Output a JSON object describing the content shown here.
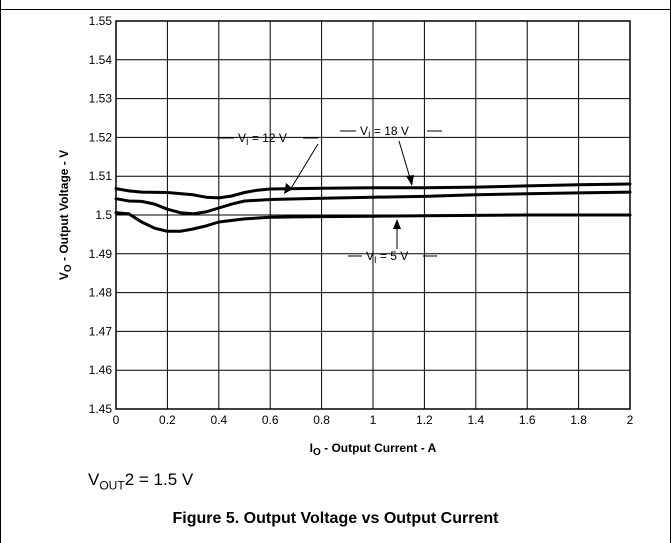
{
  "chart_data": {
    "type": "line",
    "title": "Figure 5. Output Voltage vs Output Current",
    "xlabel": {
      "main": "I",
      "sub": "O",
      "rest": " - Output Current - A"
    },
    "ylabel": {
      "main": "V",
      "sub": "O",
      "rest": " - Output Voltage - V"
    },
    "xlim": [
      0,
      2
    ],
    "ylim": [
      1.45,
      1.55
    ],
    "xticks": [
      "0",
      "0.2",
      "0.4",
      "0.6",
      "0.8",
      "1",
      "1.2",
      "1.4",
      "1.6",
      "1.8",
      "2"
    ],
    "yticks": [
      "1.45",
      "1.46",
      "1.47",
      "1.48",
      "1.49",
      "1.5",
      "1.51",
      "1.52",
      "1.53",
      "1.54",
      "1.55"
    ],
    "grid": true,
    "series": [
      {
        "name": "VI = 18 V",
        "x": [
          0,
          0.05,
          0.1,
          0.2,
          0.3,
          0.35,
          0.4,
          0.45,
          0.5,
          0.55,
          0.6,
          0.7,
          0.8,
          1.0,
          1.2,
          1.4,
          1.6,
          1.8,
          2.0
        ],
        "y": [
          1.5068,
          1.5062,
          1.5059,
          1.5058,
          1.5052,
          1.5046,
          1.5044,
          1.5049,
          1.5058,
          1.5064,
          1.5067,
          1.5068,
          1.5069,
          1.507,
          1.507,
          1.5072,
          1.5075,
          1.5078,
          1.508
        ]
      },
      {
        "name": "VI = 12 V",
        "x": [
          0,
          0.05,
          0.1,
          0.15,
          0.2,
          0.25,
          0.3,
          0.35,
          0.4,
          0.45,
          0.5,
          0.6,
          0.8,
          1.0,
          1.2,
          1.4,
          1.6,
          1.8,
          2.0
        ],
        "y": [
          1.5042,
          1.5036,
          1.5035,
          1.5028,
          1.5015,
          1.5006,
          1.5003,
          1.5008,
          1.5018,
          1.5028,
          1.5036,
          1.504,
          1.5043,
          1.5046,
          1.5048,
          1.5052,
          1.5055,
          1.5057,
          1.5059
        ]
      },
      {
        "name": "VI = 5 V",
        "x": [
          0,
          0.05,
          0.1,
          0.15,
          0.2,
          0.25,
          0.3,
          0.35,
          0.4,
          0.5,
          0.6,
          0.7,
          0.8,
          1.0,
          1.2,
          1.4,
          1.6,
          1.8,
          2.0
        ],
        "y": [
          1.5006,
          1.5003,
          1.4982,
          1.4966,
          1.4958,
          1.4958,
          1.4964,
          1.4972,
          1.4982,
          1.499,
          1.4994,
          1.4995,
          1.4996,
          1.4997,
          1.4998,
          1.4999,
          1.5,
          1.5,
          1.5
        ]
      }
    ],
    "annotations": [
      {
        "main": "V",
        "sub": "I",
        "rest": " = 12 V"
      },
      {
        "main": "V",
        "sub": "I",
        "rest": " = 18 V"
      },
      {
        "main": "V",
        "sub": "I",
        "rest": " = 5 V"
      }
    ]
  },
  "condition": {
    "main": "V",
    "sub": "OUT",
    "rest": "2 = 1.5 V"
  },
  "caption": "Figure 5. Output Voltage vs Output Current"
}
